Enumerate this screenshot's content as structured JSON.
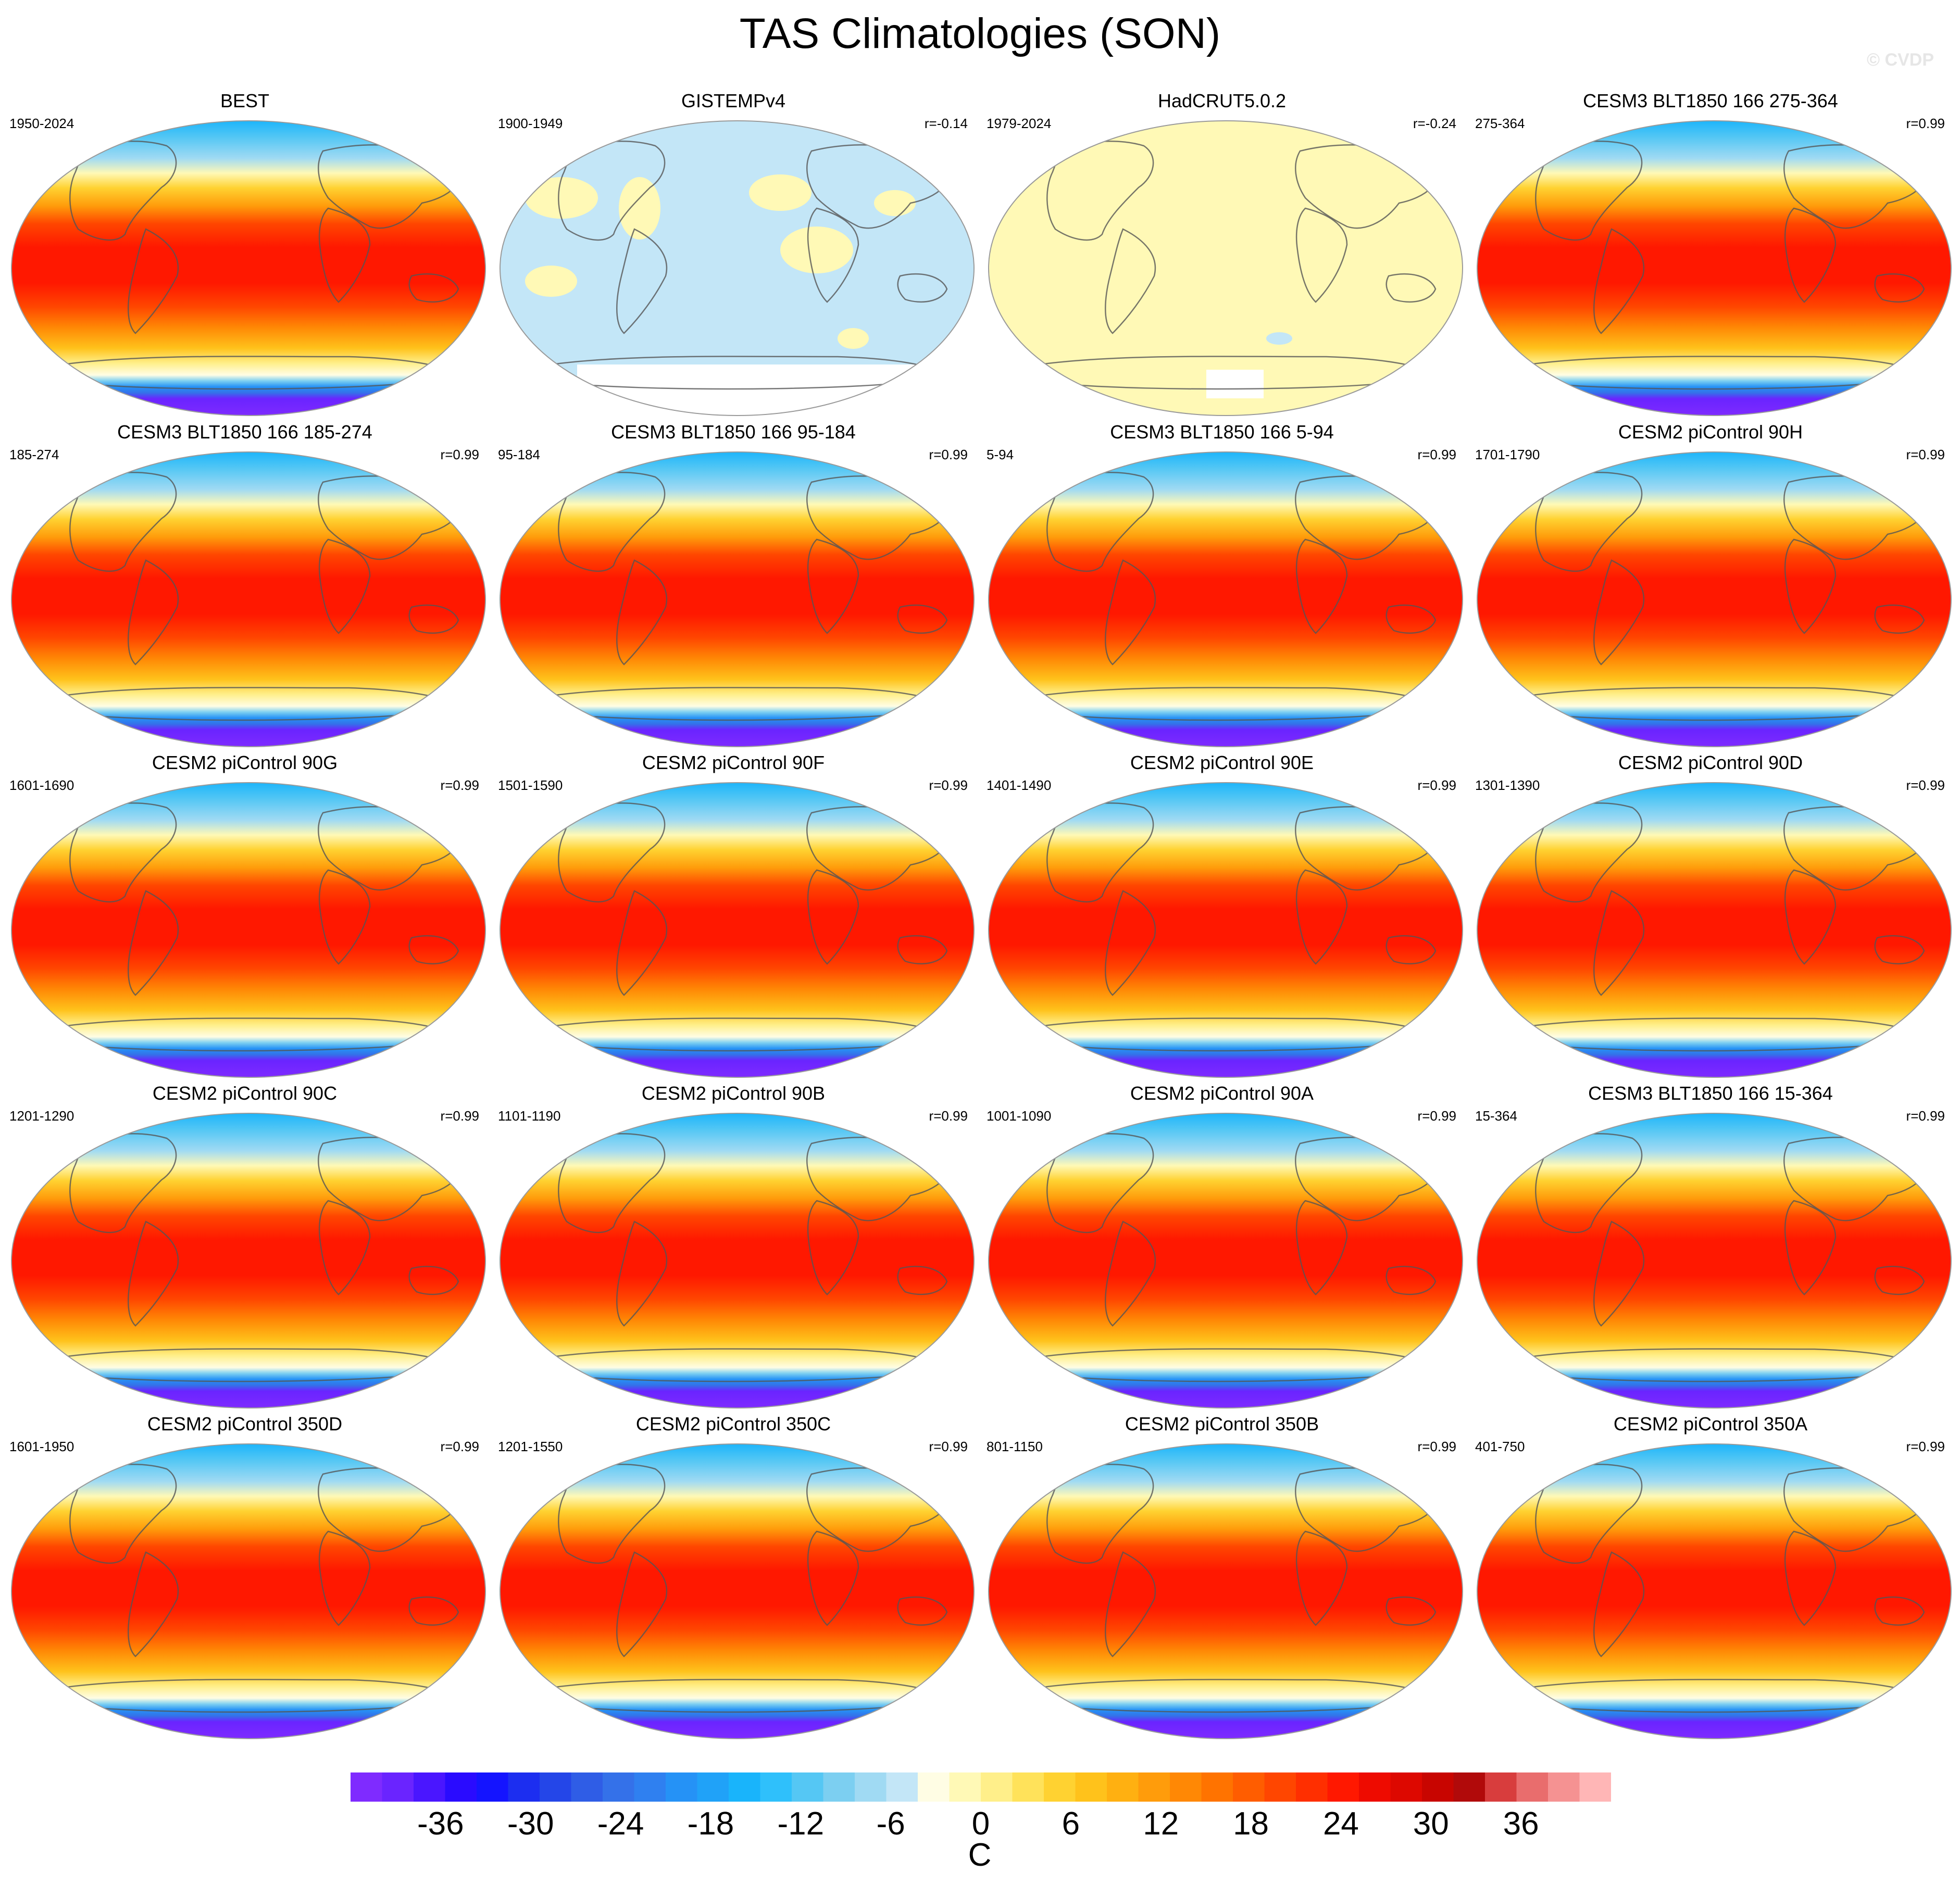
{
  "figure": {
    "title": "TAS Climatologies (SON)",
    "watermark": "© CVDP"
  },
  "chart_data": {
    "type": "map",
    "variable": "TAS",
    "season": "SON",
    "projection": "robinson",
    "panels": [
      {
        "title": "BEST",
        "years": "1950-2024",
        "corr": "",
        "style": "climatology"
      },
      {
        "title": "GISTEMPv4",
        "years": "1900-1949",
        "corr": "r=-0.14",
        "style": "gistemp"
      },
      {
        "title": "HadCRUT5.0.2",
        "years": "1979-2024",
        "corr": "r=-0.24",
        "style": "hadcrut"
      },
      {
        "title": "CESM3 BLT1850 166 275-364",
        "years": "275-364",
        "corr": "r=0.99",
        "style": "climatology"
      },
      {
        "title": "CESM3 BLT1850 166 185-274",
        "years": "185-274",
        "corr": "r=0.99",
        "style": "climatology"
      },
      {
        "title": "CESM3 BLT1850 166 95-184",
        "years": "95-184",
        "corr": "r=0.99",
        "style": "climatology"
      },
      {
        "title": "CESM3 BLT1850 166 5-94",
        "years": "5-94",
        "corr": "r=0.99",
        "style": "climatology"
      },
      {
        "title": "CESM2 piControl 90H",
        "years": "1701-1790",
        "corr": "r=0.99",
        "style": "climatology"
      },
      {
        "title": "CESM2 piControl 90G",
        "years": "1601-1690",
        "corr": "r=0.99",
        "style": "climatology"
      },
      {
        "title": "CESM2 piControl 90F",
        "years": "1501-1590",
        "corr": "r=0.99",
        "style": "climatology"
      },
      {
        "title": "CESM2 piControl 90E",
        "years": "1401-1490",
        "corr": "r=0.99",
        "style": "climatology"
      },
      {
        "title": "CESM2 piControl 90D",
        "years": "1301-1390",
        "corr": "r=0.99",
        "style": "climatology"
      },
      {
        "title": "CESM2 piControl 90C",
        "years": "1201-1290",
        "corr": "r=0.99",
        "style": "climatology"
      },
      {
        "title": "CESM2 piControl 90B",
        "years": "1101-1190",
        "corr": "r=0.99",
        "style": "climatology"
      },
      {
        "title": "CESM2 piControl 90A",
        "years": "1001-1090",
        "corr": "r=0.99",
        "style": "climatology"
      },
      {
        "title": "CESM3 BLT1850 166 15-364",
        "years": "15-364",
        "corr": "r=0.99",
        "style": "climatology"
      },
      {
        "title": "CESM2 piControl 350D",
        "years": "1601-1950",
        "corr": "r=0.99",
        "style": "climatology"
      },
      {
        "title": "CESM2 piControl 350C",
        "years": "1201-1550",
        "corr": "r=0.99",
        "style": "climatology"
      },
      {
        "title": "CESM2 piControl 350B",
        "years": "801-1150",
        "corr": "r=0.99",
        "style": "climatology"
      },
      {
        "title": "CESM2 piControl 350A",
        "years": "401-750",
        "corr": "r=0.99",
        "style": "climatology"
      }
    ],
    "colorbar": {
      "unit": "C",
      "range": [
        -42,
        42
      ],
      "interval": 2,
      "tick_values": [
        -36,
        -30,
        -24,
        -18,
        -12,
        -6,
        0,
        6,
        12,
        18,
        24,
        30,
        36
      ],
      "tick_labels": [
        "-36",
        "-30",
        "-24",
        "-18",
        "-12",
        "-6",
        "0",
        "6",
        "12",
        "18",
        "24",
        "30",
        "36"
      ],
      "colors": [
        "#7f2bff",
        "#6a24ff",
        "#4a16ff",
        "#2a0bff",
        "#1414ff",
        "#1c2ef0",
        "#2446e8",
        "#2f5de6",
        "#3471e9",
        "#2f80f0",
        "#2592f6",
        "#20a2f8",
        "#19b4fb",
        "#2fc0fb",
        "#55c7f4",
        "#7ccff1",
        "#a0daf3",
        "#c3e6f7",
        "#fffde4",
        "#fff9b6",
        "#ffef8a",
        "#ffe25a",
        "#ffd231",
        "#ffc21b",
        "#ffb011",
        "#ff9c0b",
        "#ff8805",
        "#ff7300",
        "#ff5d00",
        "#ff4600",
        "#ff2f00",
        "#ff1800",
        "#ee0b00",
        "#dd0800",
        "#c80500",
        "#b10a0a",
        "#d83d3d",
        "#e96d6d",
        "#f59292",
        "#ffb6b6"
      ]
    }
  }
}
